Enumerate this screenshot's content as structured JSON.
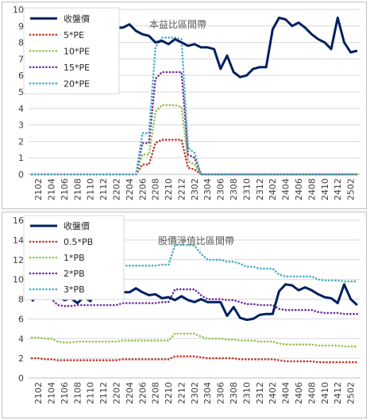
{
  "chart_data": [
    {
      "type": "line",
      "title": "本益比區間帶",
      "xlabel": "",
      "ylabel": "",
      "ylim": [
        0,
        10
      ],
      "ytick_step": 1,
      "x": [
        "2101",
        "2102",
        "2103",
        "2104",
        "2105",
        "2106",
        "2107",
        "2108",
        "2109",
        "2110",
        "2111",
        "2112",
        "2201",
        "2202",
        "2203",
        "2204",
        "2205",
        "2206",
        "2207",
        "2208",
        "2209",
        "2210",
        "2211",
        "2212",
        "2301",
        "2302",
        "2303",
        "2304",
        "2305",
        "2306",
        "2307",
        "2308",
        "2309",
        "2310",
        "2311",
        "2312",
        "2401",
        "2402",
        "2403",
        "2404",
        "2405",
        "2406",
        "2407",
        "2408",
        "2409",
        "2410",
        "2411",
        "2412",
        "2501",
        "2502",
        "2503"
      ],
      "xtick_labels": [
        "2102",
        "2104",
        "2106",
        "2108",
        "2110",
        "2112",
        "2202",
        "2204",
        "2206",
        "2208",
        "2210",
        "2212",
        "2302",
        "2304",
        "2306",
        "2308",
        "2310",
        "2312",
        "2402",
        "2404",
        "2406",
        "2408",
        "2410",
        "2412",
        "2502"
      ],
      "grid": true,
      "legend": "top-left",
      "series": [
        {
          "name": "收盤價",
          "color": "#002060",
          "style": "solid",
          "values": [
            8.5,
            8.6,
            8.7,
            8.6,
            8.5,
            8.5,
            8.4,
            8.2,
            8.4,
            8.8,
            9.0,
            8.8,
            8.7,
            8.9,
            8.9,
            9.1,
            8.7,
            8.5,
            8.4,
            8.0,
            8.1,
            7.9,
            8.2,
            8.0,
            7.8,
            7.9,
            7.7,
            7.7,
            7.6,
            6.4,
            7.2,
            6.2,
            5.9,
            6.0,
            6.4,
            6.5,
            6.5,
            8.8,
            9.5,
            9.4,
            9.0,
            9.2,
            8.9,
            8.5,
            8.2,
            8.0,
            7.6,
            9.5,
            8.0,
            7.4,
            7.5
          ]
        },
        {
          "name": "5*PE",
          "color": "#c0392b",
          "style": "dotted",
          "values": [
            0,
            0,
            0,
            0,
            0,
            0,
            0,
            0,
            0,
            0,
            0,
            0,
            0,
            0,
            0,
            0,
            0,
            0.6,
            0.6,
            1.9,
            2.1,
            2.1,
            2.1,
            2.1,
            0.4,
            0.3,
            0,
            0,
            0,
            0,
            0,
            0,
            0,
            0,
            0,
            0,
            0,
            0,
            0,
            0,
            0,
            0,
            0,
            0,
            0,
            0,
            0,
            0,
            0,
            0,
            0
          ]
        },
        {
          "name": "10*PE",
          "color": "#92c353",
          "style": "dotted",
          "values": [
            0,
            0,
            0,
            0,
            0,
            0,
            0,
            0,
            0,
            0,
            0,
            0,
            0,
            0,
            0,
            0,
            0,
            1.2,
            1.2,
            3.8,
            4.2,
            4.2,
            4.2,
            4.1,
            0.8,
            0.6,
            0,
            0,
            0,
            0,
            0,
            0,
            0,
            0,
            0,
            0,
            0,
            0,
            0,
            0,
            0,
            0,
            0,
            0,
            0,
            0,
            0,
            0,
            0,
            0,
            0
          ]
        },
        {
          "name": "15*PE",
          "color": "#7030a0",
          "style": "dotted",
          "values": [
            0,
            0,
            0,
            0,
            0,
            0,
            0,
            0,
            0,
            0,
            0,
            0,
            0,
            0,
            0,
            0,
            0,
            1.9,
            1.9,
            5.8,
            6.2,
            6.2,
            6.2,
            6.2,
            1.2,
            1.0,
            0,
            0,
            0,
            0,
            0,
            0,
            0,
            0,
            0,
            0,
            0,
            0,
            0,
            0,
            0,
            0,
            0,
            0,
            0,
            0,
            0,
            0,
            0,
            0,
            0
          ]
        },
        {
          "name": "20*PE",
          "color": "#4bacc6",
          "style": "dotted",
          "values": [
            0,
            0,
            0,
            0,
            0,
            0,
            0,
            0,
            0,
            0,
            0,
            0,
            0,
            0,
            0,
            0,
            0,
            2.5,
            2.5,
            7.7,
            8.3,
            8.3,
            8.3,
            8.2,
            1.6,
            1.3,
            0,
            0,
            0,
            0,
            0,
            0,
            0,
            0,
            0,
            0,
            0,
            0,
            0,
            0,
            0,
            0,
            0,
            0,
            0,
            0,
            0,
            0,
            0,
            0,
            0
          ]
        }
      ]
    },
    {
      "type": "line",
      "title": "股價淨值比區間帶",
      "xlabel": "",
      "ylabel": "",
      "ylim": [
        0,
        16
      ],
      "ytick_step": 2,
      "x": [
        "2101",
        "2102",
        "2103",
        "2104",
        "2105",
        "2106",
        "2107",
        "2108",
        "2109",
        "2110",
        "2111",
        "2112",
        "2201",
        "2202",
        "2203",
        "2204",
        "2205",
        "2206",
        "2207",
        "2208",
        "2209",
        "2210",
        "2211",
        "2212",
        "2301",
        "2302",
        "2303",
        "2304",
        "2305",
        "2306",
        "2307",
        "2308",
        "2309",
        "2310",
        "2311",
        "2312",
        "2401",
        "2402",
        "2403",
        "2404",
        "2405",
        "2406",
        "2407",
        "2408",
        "2409",
        "2410",
        "2411",
        "2412",
        "2501",
        "2502",
        "2503"
      ],
      "xtick_labels": [
        "2102",
        "2104",
        "2106",
        "2108",
        "2110",
        "2112",
        "2202",
        "2204",
        "2206",
        "2208",
        "2210",
        "2212",
        "2302",
        "2304",
        "2306",
        "2308",
        "2310",
        "2312",
        "2402",
        "2404",
        "2406",
        "2408",
        "2410",
        "2412",
        "2502"
      ],
      "grid": true,
      "legend": "top-left",
      "series": [
        {
          "name": "收盤價",
          "color": "#002060",
          "style": "solid",
          "values": [
            7.8,
            8.4,
            8.6,
            8.5,
            8.3,
            7.9,
            8.1,
            7.6,
            8.2,
            7.8,
            9.1,
            9.0,
            8.7,
            8.5,
            8.7,
            8.7,
            9.1,
            8.7,
            8.4,
            8.5,
            8.1,
            8.2,
            7.9,
            8.3,
            7.9,
            7.7,
            8.0,
            7.7,
            7.7,
            7.7,
            6.3,
            7.2,
            6.1,
            5.9,
            6.0,
            6.4,
            6.5,
            6.5,
            8.8,
            9.5,
            9.4,
            8.9,
            9.2,
            8.9,
            8.5,
            8.2,
            8.1,
            7.6,
            9.5,
            8.0,
            7.4
          ]
        },
        {
          "name": "0.5*PB",
          "color": "#c0392b",
          "style": "dotted",
          "values": [
            2.0,
            2.0,
            1.9,
            1.9,
            1.8,
            1.8,
            1.8,
            1.8,
            1.8,
            1.8,
            1.8,
            1.8,
            1.8,
            1.8,
            1.9,
            1.9,
            1.9,
            1.9,
            1.9,
            1.9,
            1.9,
            1.9,
            2.2,
            2.2,
            2.2,
            2.2,
            2.1,
            2.0,
            2.0,
            2.0,
            2.0,
            2.0,
            1.9,
            1.9,
            1.9,
            1.9,
            1.9,
            1.9,
            1.8,
            1.7,
            1.7,
            1.7,
            1.7,
            1.7,
            1.6,
            1.6,
            1.6,
            1.6,
            1.6,
            1.6,
            1.6
          ]
        },
        {
          "name": "1*PB",
          "color": "#92c353",
          "style": "dotted",
          "values": [
            4.1,
            4.1,
            4.0,
            4.0,
            3.7,
            3.6,
            3.6,
            3.7,
            3.7,
            3.7,
            3.7,
            3.7,
            3.7,
            3.7,
            3.8,
            3.8,
            3.8,
            3.8,
            3.8,
            3.8,
            3.8,
            3.8,
            4.5,
            4.5,
            4.5,
            4.5,
            4.2,
            4.0,
            4.0,
            4.0,
            3.9,
            3.9,
            3.8,
            3.8,
            3.8,
            3.7,
            3.7,
            3.7,
            3.5,
            3.4,
            3.4,
            3.4,
            3.4,
            3.4,
            3.3,
            3.3,
            3.3,
            3.3,
            3.2,
            3.2,
            3.2
          ]
        },
        {
          "name": "2*PB",
          "color": "#7030a0",
          "style": "dotted",
          "values": [
            8.2,
            8.2,
            8.0,
            8.0,
            7.4,
            7.3,
            7.3,
            7.4,
            7.4,
            7.4,
            7.4,
            7.4,
            7.4,
            7.4,
            7.6,
            7.6,
            7.6,
            7.6,
            7.6,
            7.6,
            7.7,
            7.7,
            9.0,
            9.0,
            9.0,
            9.0,
            8.4,
            8.0,
            8.0,
            8.0,
            7.9,
            7.9,
            7.7,
            7.5,
            7.5,
            7.4,
            7.4,
            7.4,
            7.0,
            6.9,
            6.9,
            6.9,
            6.9,
            6.9,
            6.7,
            6.6,
            6.6,
            6.6,
            6.5,
            6.5,
            6.5
          ]
        },
        {
          "name": "3*PB",
          "color": "#4bacc6",
          "style": "dotted",
          "values": [
            12.3,
            12.3,
            12.0,
            12.0,
            11.1,
            10.9,
            10.9,
            11.1,
            11.1,
            11.1,
            11.1,
            11.1,
            11.1,
            11.1,
            11.4,
            11.4,
            11.4,
            11.4,
            11.4,
            11.4,
            11.5,
            11.5,
            13.5,
            13.5,
            13.5,
            13.4,
            12.6,
            12.0,
            12.0,
            12.0,
            11.8,
            11.8,
            11.6,
            11.3,
            11.3,
            11.1,
            11.1,
            11.1,
            10.5,
            10.3,
            10.3,
            10.3,
            10.3,
            10.3,
            10.0,
            9.9,
            9.9,
            9.9,
            9.8,
            9.8,
            9.8
          ]
        }
      ]
    }
  ]
}
